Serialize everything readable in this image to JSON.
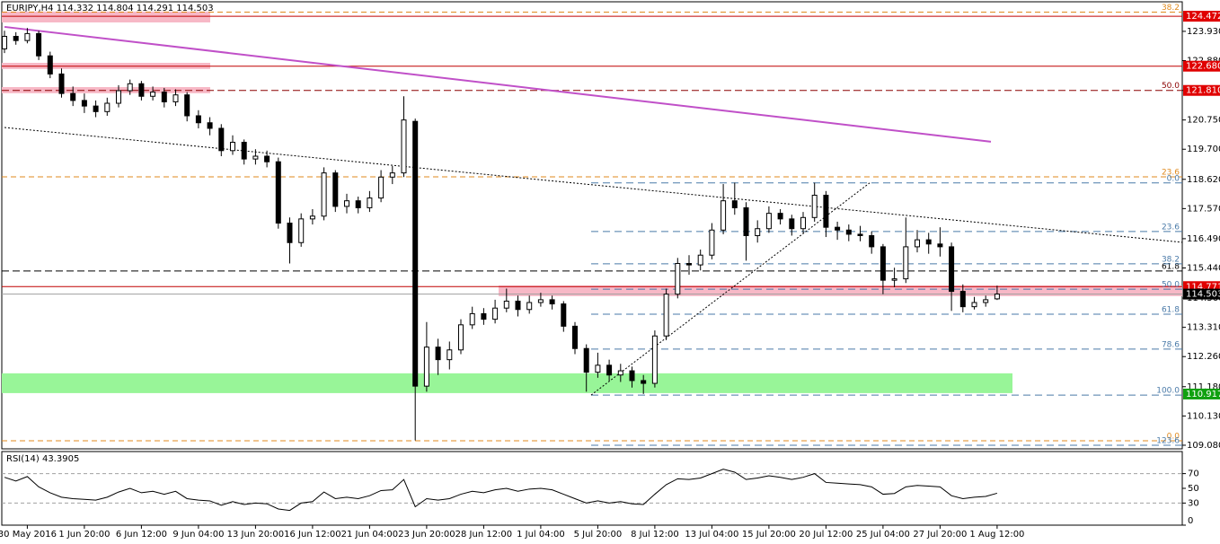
{
  "header": "EURJPY,H4  114.332 114.804 114.291 114.503",
  "chart_data": [
    {
      "type": "candlestick",
      "up_color": "#ffffff",
      "down_color": "#000000",
      "categories": [
        null,
        null,
        "30 May 2016",
        null,
        null,
        null,
        null,
        "1 Jun 20:00",
        null,
        null,
        null,
        null,
        "6 Jun 12:00",
        null,
        null,
        null,
        null,
        "9 Jun 04:00",
        null,
        null,
        null,
        null,
        "13 Jun 20:00",
        null,
        null,
        null,
        null,
        "16 Jun 12:00",
        null,
        null,
        null,
        null,
        "21 Jun 04:00",
        null,
        null,
        null,
        null,
        "23 Jun 20:00",
        null,
        null,
        null,
        null,
        "28 Jun 12:00",
        null,
        null,
        null,
        null,
        "1 Jul 04:00",
        null,
        null,
        null,
        null,
        "5 Jul 20:00",
        null,
        null,
        null,
        null,
        "8 Jul 12:00",
        null,
        null,
        null,
        null,
        "13 Jul 04:00",
        null,
        null,
        null,
        null,
        "15 Jul 20:00",
        null,
        null,
        null,
        null,
        "20 Jul 12:00",
        null,
        null,
        null,
        null,
        "25 Jul 04:00",
        null,
        null,
        null,
        null,
        "27 Jul 20:00",
        null,
        null,
        null,
        null,
        "1 Aug 12:00"
      ],
      "open": [
        123.3,
        123.75,
        123.6,
        123.85,
        123.05,
        122.4,
        121.7,
        121.45,
        121.25,
        121.05,
        121.35,
        121.8,
        122.05,
        121.6,
        121.75,
        121.4,
        121.65,
        120.9,
        120.65,
        120.45,
        119.65,
        119.95,
        119.35,
        119.45,
        119.25,
        117.05,
        116.35,
        117.2,
        117.3,
        118.85,
        117.65,
        117.85,
        117.6,
        117.95,
        118.7,
        118.85,
        120.7,
        111.2,
        112.6,
        112.15,
        112.5,
        113.4,
        113.8,
        113.6,
        114.0,
        114.25,
        113.95,
        114.2,
        114.3,
        114.15,
        113.35,
        112.55,
        111.7,
        111.95,
        111.6,
        111.75,
        111.4,
        111.3,
        113.0,
        114.5,
        115.6,
        115.55,
        115.9,
        116.8,
        117.85,
        117.6,
        116.6,
        116.85,
        117.4,
        117.2,
        116.85,
        117.25,
        118.05,
        116.9,
        116.8,
        116.65,
        116.6,
        116.2,
        115.0,
        115.05,
        116.2,
        116.45,
        116.3,
        116.2,
        114.6,
        114.05,
        114.2,
        114.332
      ],
      "high": [
        123.95,
        123.9,
        124.05,
        123.95,
        123.2,
        122.6,
        121.95,
        121.7,
        121.45,
        121.55,
        122.0,
        122.2,
        122.15,
        121.95,
        121.9,
        121.85,
        121.75,
        121.1,
        120.85,
        120.6,
        120.2,
        120.05,
        119.7,
        119.65,
        119.4,
        117.25,
        117.4,
        117.55,
        119.05,
        118.95,
        118.1,
        118.0,
        118.2,
        118.95,
        119.1,
        121.6,
        120.8,
        113.5,
        112.9,
        112.8,
        113.6,
        114.05,
        114.0,
        114.3,
        114.7,
        114.45,
        114.45,
        114.55,
        114.45,
        114.25,
        113.5,
        112.7,
        112.4,
        112.15,
        112.0,
        111.9,
        111.6,
        113.2,
        114.7,
        115.8,
        115.9,
        116.1,
        117.05,
        118.45,
        118.5,
        117.8,
        117.15,
        117.65,
        117.55,
        117.35,
        117.45,
        118.5,
        118.2,
        117.1,
        117.0,
        116.95,
        116.75,
        116.3,
        115.45,
        117.25,
        116.8,
        116.7,
        116.9,
        116.35,
        114.85,
        114.4,
        114.45,
        114.804
      ],
      "low": [
        123.15,
        123.45,
        123.5,
        122.9,
        122.25,
        121.55,
        121.25,
        121.0,
        120.85,
        120.9,
        121.2,
        121.65,
        121.45,
        121.45,
        121.2,
        121.25,
        120.7,
        120.45,
        120.2,
        119.45,
        119.5,
        119.15,
        119.15,
        119.05,
        116.85,
        115.6,
        116.2,
        117.0,
        117.15,
        117.45,
        117.4,
        117.4,
        117.45,
        117.8,
        118.45,
        118.7,
        109.25,
        111.0,
        111.6,
        111.8,
        112.35,
        113.25,
        113.4,
        113.45,
        113.85,
        113.7,
        113.8,
        114.05,
        113.95,
        113.15,
        112.35,
        111.0,
        111.5,
        111.4,
        111.35,
        111.15,
        110.92,
        111.15,
        112.85,
        114.35,
        115.2,
        115.35,
        115.75,
        116.65,
        117.35,
        115.7,
        116.35,
        116.7,
        117.0,
        116.6,
        116.7,
        117.1,
        116.55,
        116.45,
        116.4,
        116.4,
        115.95,
        114.5,
        114.75,
        114.9,
        116.0,
        115.95,
        115.85,
        113.9,
        113.85,
        113.95,
        114.05,
        114.291
      ],
      "close": [
        123.75,
        123.6,
        123.85,
        123.05,
        122.4,
        121.7,
        121.45,
        121.25,
        121.05,
        121.35,
        121.8,
        122.05,
        121.6,
        121.75,
        121.4,
        121.65,
        120.9,
        120.65,
        120.45,
        119.65,
        119.95,
        119.35,
        119.45,
        119.25,
        117.05,
        116.35,
        117.2,
        117.3,
        118.85,
        117.65,
        117.85,
        117.6,
        117.95,
        118.7,
        118.85,
        120.75,
        111.2,
        112.6,
        112.15,
        112.5,
        113.4,
        113.8,
        113.6,
        114.0,
        114.25,
        113.95,
        114.2,
        114.3,
        114.15,
        113.35,
        112.55,
        111.7,
        111.95,
        111.6,
        111.75,
        111.4,
        111.3,
        113.0,
        114.5,
        115.6,
        115.55,
        115.9,
        116.8,
        117.85,
        117.6,
        116.6,
        116.85,
        117.4,
        117.2,
        116.85,
        117.25,
        118.05,
        116.9,
        116.8,
        116.65,
        116.6,
        116.2,
        115.0,
        115.05,
        116.2,
        116.45,
        116.3,
        116.2,
        114.6,
        114.05,
        114.2,
        114.3,
        114.503
      ],
      "ylim": [
        108.95,
        124.99
      ],
      "yticks": [
        {
          "value": 123.93,
          "label": "123.930"
        },
        {
          "value": 122.88,
          "label": "122.880"
        },
        {
          "value": 121.81,
          "label": "121.810"
        },
        {
          "value": 120.75,
          "label": "120.750"
        },
        {
          "value": 119.7,
          "label": "119.700"
        },
        {
          "value": 118.62,
          "label": "118.620"
        },
        {
          "value": 117.57,
          "label": "117.570"
        },
        {
          "value": 116.49,
          "label": "116.490"
        },
        {
          "value": 115.44,
          "label": "115.440"
        },
        {
          "value": 114.36,
          "label": "114.360"
        },
        {
          "value": 113.31,
          "label": "113.310"
        },
        {
          "value": 112.26,
          "label": "112.260"
        },
        {
          "value": 111.18,
          "label": "111.180"
        },
        {
          "value": 110.13,
          "label": "110.130"
        },
        {
          "value": 109.08,
          "label": "109.080"
        }
      ],
      "grid": false,
      "zones": [
        {
          "from": 124.64,
          "to": 124.25,
          "color": "#f7b8c6"
        },
        {
          "from": 122.8,
          "to": 122.58,
          "color": "#f7b8c6"
        },
        {
          "from": 121.93,
          "to": 121.71,
          "color": "#f7b8c6"
        },
        {
          "from": 114.81,
          "to": 114.43,
          "color": "#f7b8c6"
        },
        {
          "from": 111.66,
          "to": 110.95,
          "color": "#98f598"
        }
      ],
      "levels": [
        {
          "price": 124.62,
          "label": "38.2",
          "color": "#e08a1e",
          "dash": "6,4",
          "span": "full"
        },
        {
          "price": 124.472,
          "color": "#c00000",
          "span": "full"
        },
        {
          "price": 122.68,
          "color": "#c00000",
          "span": "full"
        },
        {
          "price": 121.81,
          "label": "50.0",
          "color": "#8b0000",
          "dash": "8,4",
          "span": "full"
        },
        {
          "price": 118.71,
          "label": "23.6",
          "color": "#e08a1e",
          "dash": "6,4",
          "span": "full"
        },
        {
          "price": 115.33,
          "label": "61.8",
          "color": "#000000",
          "dash": "8,4",
          "span": "full"
        },
        {
          "price": 114.771,
          "color": "#c00000",
          "span": "full"
        },
        {
          "price": 114.503,
          "color": "#a0a0a0",
          "span": "full"
        },
        {
          "price": 109.24,
          "label": "0.0",
          "color": "#e08a1e",
          "dash": "6,4",
          "span": "full"
        },
        {
          "price": 118.49,
          "label": "0.0",
          "color": "#4a7aa8",
          "dash": "8,5",
          "span": "fib"
        },
        {
          "price": 116.75,
          "label": "23.6",
          "color": "#4a7aa8",
          "dash": "8,5",
          "span": "fib"
        },
        {
          "price": 115.59,
          "label": "38.2",
          "color": "#4a7aa8",
          "dash": "8,5",
          "span": "fib"
        },
        {
          "price": 114.68,
          "label": "50.0",
          "color": "#4a7aa8",
          "dash": "8,5",
          "span": "fib"
        },
        {
          "price": 113.78,
          "label": "61.8",
          "color": "#4a7aa8",
          "dash": "8,5",
          "span": "fib"
        },
        {
          "price": 112.53,
          "label": "78.6",
          "color": "#4a7aa8",
          "dash": "8,5",
          "span": "fib"
        },
        {
          "price": 110.88,
          "label": "100.0",
          "color": "#4a7aa8",
          "dash": "8,5",
          "span": "fib"
        },
        {
          "price": 109.08,
          "label": "123.6",
          "color": "#4a7aa8",
          "dash": "8,5",
          "span": "fib"
        }
      ],
      "trendlines": [
        {
          "from": 124.09,
          "to": 119.97,
          "color": "#c050c8",
          "width": 2
        },
        {
          "from": 120.48,
          "to": 116.36,
          "color": "#000000",
          "width": 1,
          "dash": "2,2"
        },
        {
          "from": 110.88,
          "to": 118.49,
          "color": "#000000",
          "width": 1,
          "dash": "2,2"
        }
      ],
      "price_tags": [
        {
          "value": 124.472,
          "label": "124.472",
          "color": "#e00000"
        },
        {
          "value": 122.68,
          "label": "122.680",
          "color": "#e00000"
        },
        {
          "value": 121.81,
          "label": "121.810",
          "color": "#e00000"
        },
        {
          "value": 114.771,
          "label": "114.771",
          "color": "#e00000"
        },
        {
          "value": 114.503,
          "label": "114.503",
          "color": "#000000"
        },
        {
          "value": 110.917,
          "label": "110.917",
          "color": "#10a010"
        }
      ]
    },
    {
      "type": "line",
      "title": "RSI(14) 43.3905",
      "color": "#000000",
      "values": [
        65,
        60,
        66,
        52,
        44,
        38,
        36,
        35,
        34,
        38,
        45,
        50,
        44,
        46,
        42,
        46,
        36,
        34,
        33,
        27,
        32,
        28,
        30,
        29,
        22,
        20,
        30,
        32,
        45,
        36,
        38,
        36,
        40,
        47,
        48,
        62,
        25,
        36,
        34,
        36,
        42,
        46,
        44,
        48,
        50,
        46,
        49,
        50,
        48,
        42,
        36,
        30,
        33,
        30,
        32,
        29,
        28,
        42,
        55,
        63,
        62,
        64,
        70,
        76,
        72,
        62,
        64,
        67,
        65,
        62,
        65,
        70,
        58,
        57,
        56,
        55,
        52,
        42,
        43,
        52,
        54,
        53,
        52,
        40,
        36,
        38,
        39,
        43.3905
      ],
      "ylim": [
        0,
        100
      ],
      "yticks": [
        70,
        50,
        30,
        0
      ],
      "levels": [
        70,
        30
      ]
    }
  ]
}
